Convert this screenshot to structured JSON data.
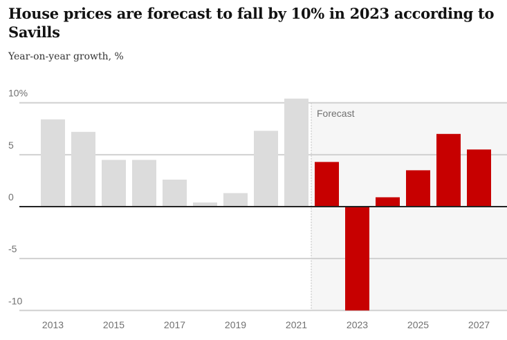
{
  "chart_data": {
    "type": "bar",
    "title": "House prices are forecast to fall by 10% in 2023 according to Savills",
    "subtitle": "Year-on-year growth, %",
    "categories": [
      "2013",
      "2014",
      "2015",
      "2016",
      "2017",
      "2018",
      "2019",
      "2020",
      "2021",
      "2022",
      "2023",
      "2024",
      "2025",
      "2026",
      "2027"
    ],
    "values": [
      8.4,
      7.2,
      4.5,
      4.5,
      2.6,
      0.4,
      1.3,
      7.3,
      10.4,
      4.3,
      -10,
      0.9,
      3.5,
      7.0,
      5.5
    ],
    "forecast_from": "2022",
    "forecast_label": "Forecast",
    "x_tick_labels": [
      "2013",
      "2015",
      "2017",
      "2019",
      "2021",
      "2023",
      "2025",
      "2027"
    ],
    "y_ticks": [
      10,
      5,
      0,
      -5,
      -10
    ],
    "y_tick_labels": [
      "10%",
      "5",
      "0",
      "-5",
      "-10"
    ],
    "ylim": [
      -10,
      10
    ],
    "grid": true,
    "colors": {
      "actual": "#dcdcdc",
      "forecast": "#c70000",
      "forecast_bg": "#f6f6f6"
    }
  }
}
